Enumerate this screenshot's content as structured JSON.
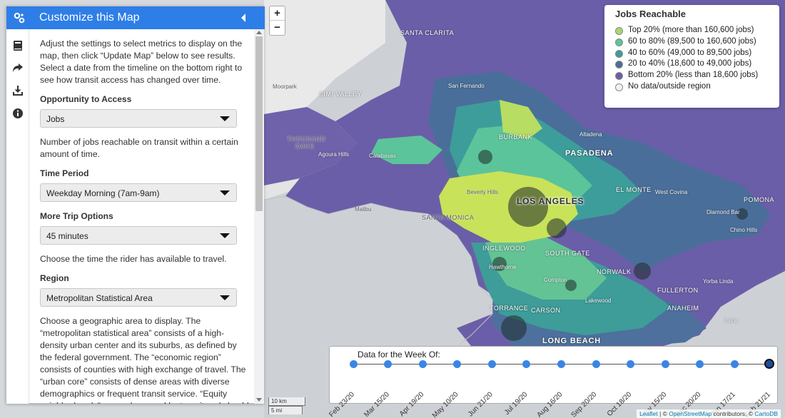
{
  "sidebar": {
    "title": "Customize this Map",
    "intro": "Adjust the settings to select metrics to display on the map, then click “Update Map” below to see results. Select a date from the timeline on the bottom right to see how transit access has changed over time.",
    "opportunity": {
      "label": "Opportunity to Access",
      "value": "Jobs",
      "description": "Number of jobs reachable on transit within a certain amount of time."
    },
    "time_period": {
      "label": "Time Period",
      "value": "Weekday Morning (7am-9am)"
    },
    "trip_options": {
      "label": "More Trip Options",
      "value": "45 minutes",
      "description": "Choose the time the rider has available to travel."
    },
    "region": {
      "label": "Region",
      "value": "Metropolitan Statistical Area",
      "description": "Choose a geographic area to display. The “metropolitan statistical area” consists of a high-density urban center and its suburbs, as defined by the federal government. The “economic region” consists of counties with high exchange of travel. The “urban core” consists of dense areas with diverse demographics or frequent transit service. “Equity neighborhoods” are underserved by transit and should"
    },
    "rail_icons": [
      "book-icon",
      "share-icon",
      "download-icon",
      "info-icon"
    ]
  },
  "zoom": {
    "in": "+",
    "out": "−"
  },
  "legend": {
    "title": "Jobs Reachable",
    "items": [
      {
        "label": "Top 20% (more than 160,600 jobs)",
        "color": "#a6d96a"
      },
      {
        "label": "60 to 80% (89,500 to 160,600 jobs)",
        "color": "#5cc49a"
      },
      {
        "label": "40 to 60% (49,000 to 89,500 jobs)",
        "color": "#3d9d9b"
      },
      {
        "label": "20 to 40% (18,600 to 49,000 jobs)",
        "color": "#4a6e9a"
      },
      {
        "label": "Bottom 20% (less than 18,600 jobs)",
        "color": "#6b5ea8"
      },
      {
        "label": "No data/outside region",
        "color": "#f2f2f2"
      }
    ]
  },
  "timeline": {
    "title": "Data for the Week Of:",
    "dates": [
      "Feb 23/20",
      "Mar 15/20",
      "Apr 19/20",
      "May 10/20",
      "Jun 21/20",
      "Jul 19/20",
      "Aug 16/20",
      "Sep 20/20",
      "Oct 18/20",
      "Nov 15/20",
      "Dec 20/20",
      "Jan 17/21",
      "Feb 21/21"
    ],
    "selected": "Feb 21/21"
  },
  "scale": {
    "km": "10 km",
    "mi": "5 mi"
  },
  "attribution": {
    "leaflet": "Leaflet",
    "sep1": " | © ",
    "osm": "OpenStreetMap",
    "sep2": " contributors, © ",
    "carto": "CartoDB"
  },
  "places": {
    "santa_clarita": "SANTA CLARITA",
    "moorpark": "Moorpark",
    "simi_valley": "SIMI VALLEY",
    "san_fernando": "San Fernando",
    "thousand_oaks": "THOUSAND OAKS",
    "agoura_hills": "Agoura Hills",
    "calabasas": "Calabasas",
    "burbank": "BURBANK",
    "altadena": "Altadena",
    "pasadena": "PASADENA",
    "beverly_hills": "Beverly Hills",
    "los_angeles": "LOS ANGELES",
    "el_monte": "EL MONTE",
    "west_covina": "West Covina",
    "pomona": "POMONA",
    "malibu": "Malibu",
    "santa_monica": "SANTA MONICA",
    "diamond_bar": "Diamond Bar",
    "chino_hills": "Chino Hills",
    "inglewood": "INGLEWOOD",
    "south_gate": "SOUTH GATE",
    "hawthorne": "Hawthorne",
    "norwalk": "NORWALK",
    "compton": "Compton",
    "yorba_linda": "Yorba Linda",
    "fullerton": "FULLERTON",
    "lakewood": "Lakewood",
    "torrance": "TORRANCE",
    "carson": "CARSON",
    "anaheim": "ANAHEIM",
    "irvine": "Irvine",
    "long_beach": "LONG BEACH"
  }
}
